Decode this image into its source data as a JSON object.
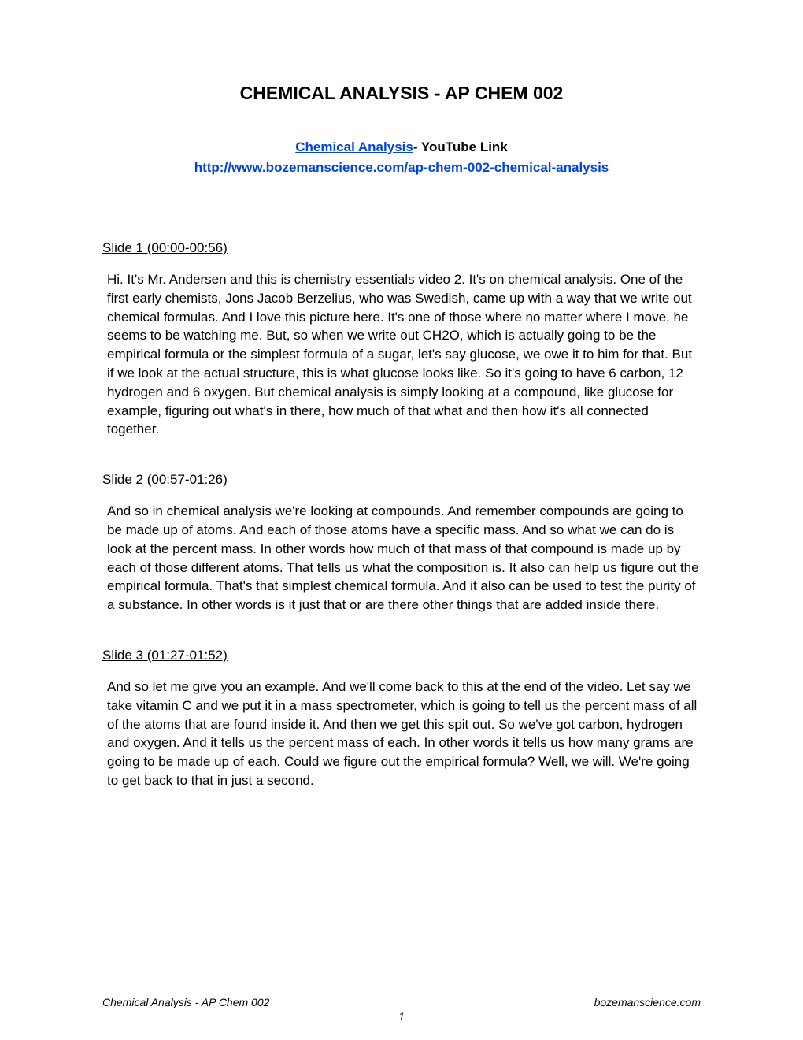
{
  "title": "CHEMICAL ANALYSIS - AP CHEM 002",
  "links": {
    "video_link_text": "Chemical Analysis",
    "video_link_label": "- YouTube Link",
    "site_link_text": "http://www.bozemanscience.com/ap-chem-002-chemical-analysis"
  },
  "slides": [
    {
      "heading": "Slide 1 (00:00-00:56)",
      "body": "Hi.  It's Mr. Andersen and this is chemistry essentials video 2.  It's on chemical analysis.  One of the first early chemists, Jons Jacob Berzelius, who was Swedish, came up with a way that we write out chemical formulas.  And I love this picture here.  It's one of those where no matter where I move, he seems to be watching me.  But, so when we write out CH2O, which is actually going to be the empirical formula or the simplest formula of a sugar, let's say glucose, we owe it to him for that.  But if we look at the actual structure, this is what glucose looks like.  So it's going to have 6 carbon, 12 hydrogen and 6 oxygen.  But chemical analysis is simply looking at a compound, like glucose for example, figuring out what's in there, how much of that what and then how it's all connected together."
    },
    {
      "heading": "Slide 2 (00:57-01:26)",
      "body": "And so in chemical analysis we're looking at compounds.  And remember compounds are going to be made up of atoms.  And each of those atoms have a specific mass.  And so what we can do is look at the percent mass.  In other words how much of that mass of that compound is made up by each of those different atoms.  That tells us what the composition is.  It also can help us figure out the empirical formula.  That's that simplest chemical formula.  And it also can be used to test the purity of a substance.  In other words is it just that or are there other things that are added inside there."
    },
    {
      "heading": "Slide 3 (01:27-01:52)",
      "body": "And so let me give you an example.  And we'll come back to this at the end of the video.  Let say we take vitamin C and we put it in a mass spectrometer, which is going to tell us the percent mass of all of the atoms that are found inside it.  And then we get this spit out.  So we've got carbon, hydrogen and oxygen.  And it tells us the percent mass of each.  In other words it tells us how many grams are going to be made up of each.  Could we figure out the empirical formula?  Well, we will.  We're going to get back to that in just a second."
    }
  ],
  "footer": {
    "left": "Chemical Analysis - AP Chem 002",
    "right": "bozemanscience.com",
    "page_number": "1"
  }
}
